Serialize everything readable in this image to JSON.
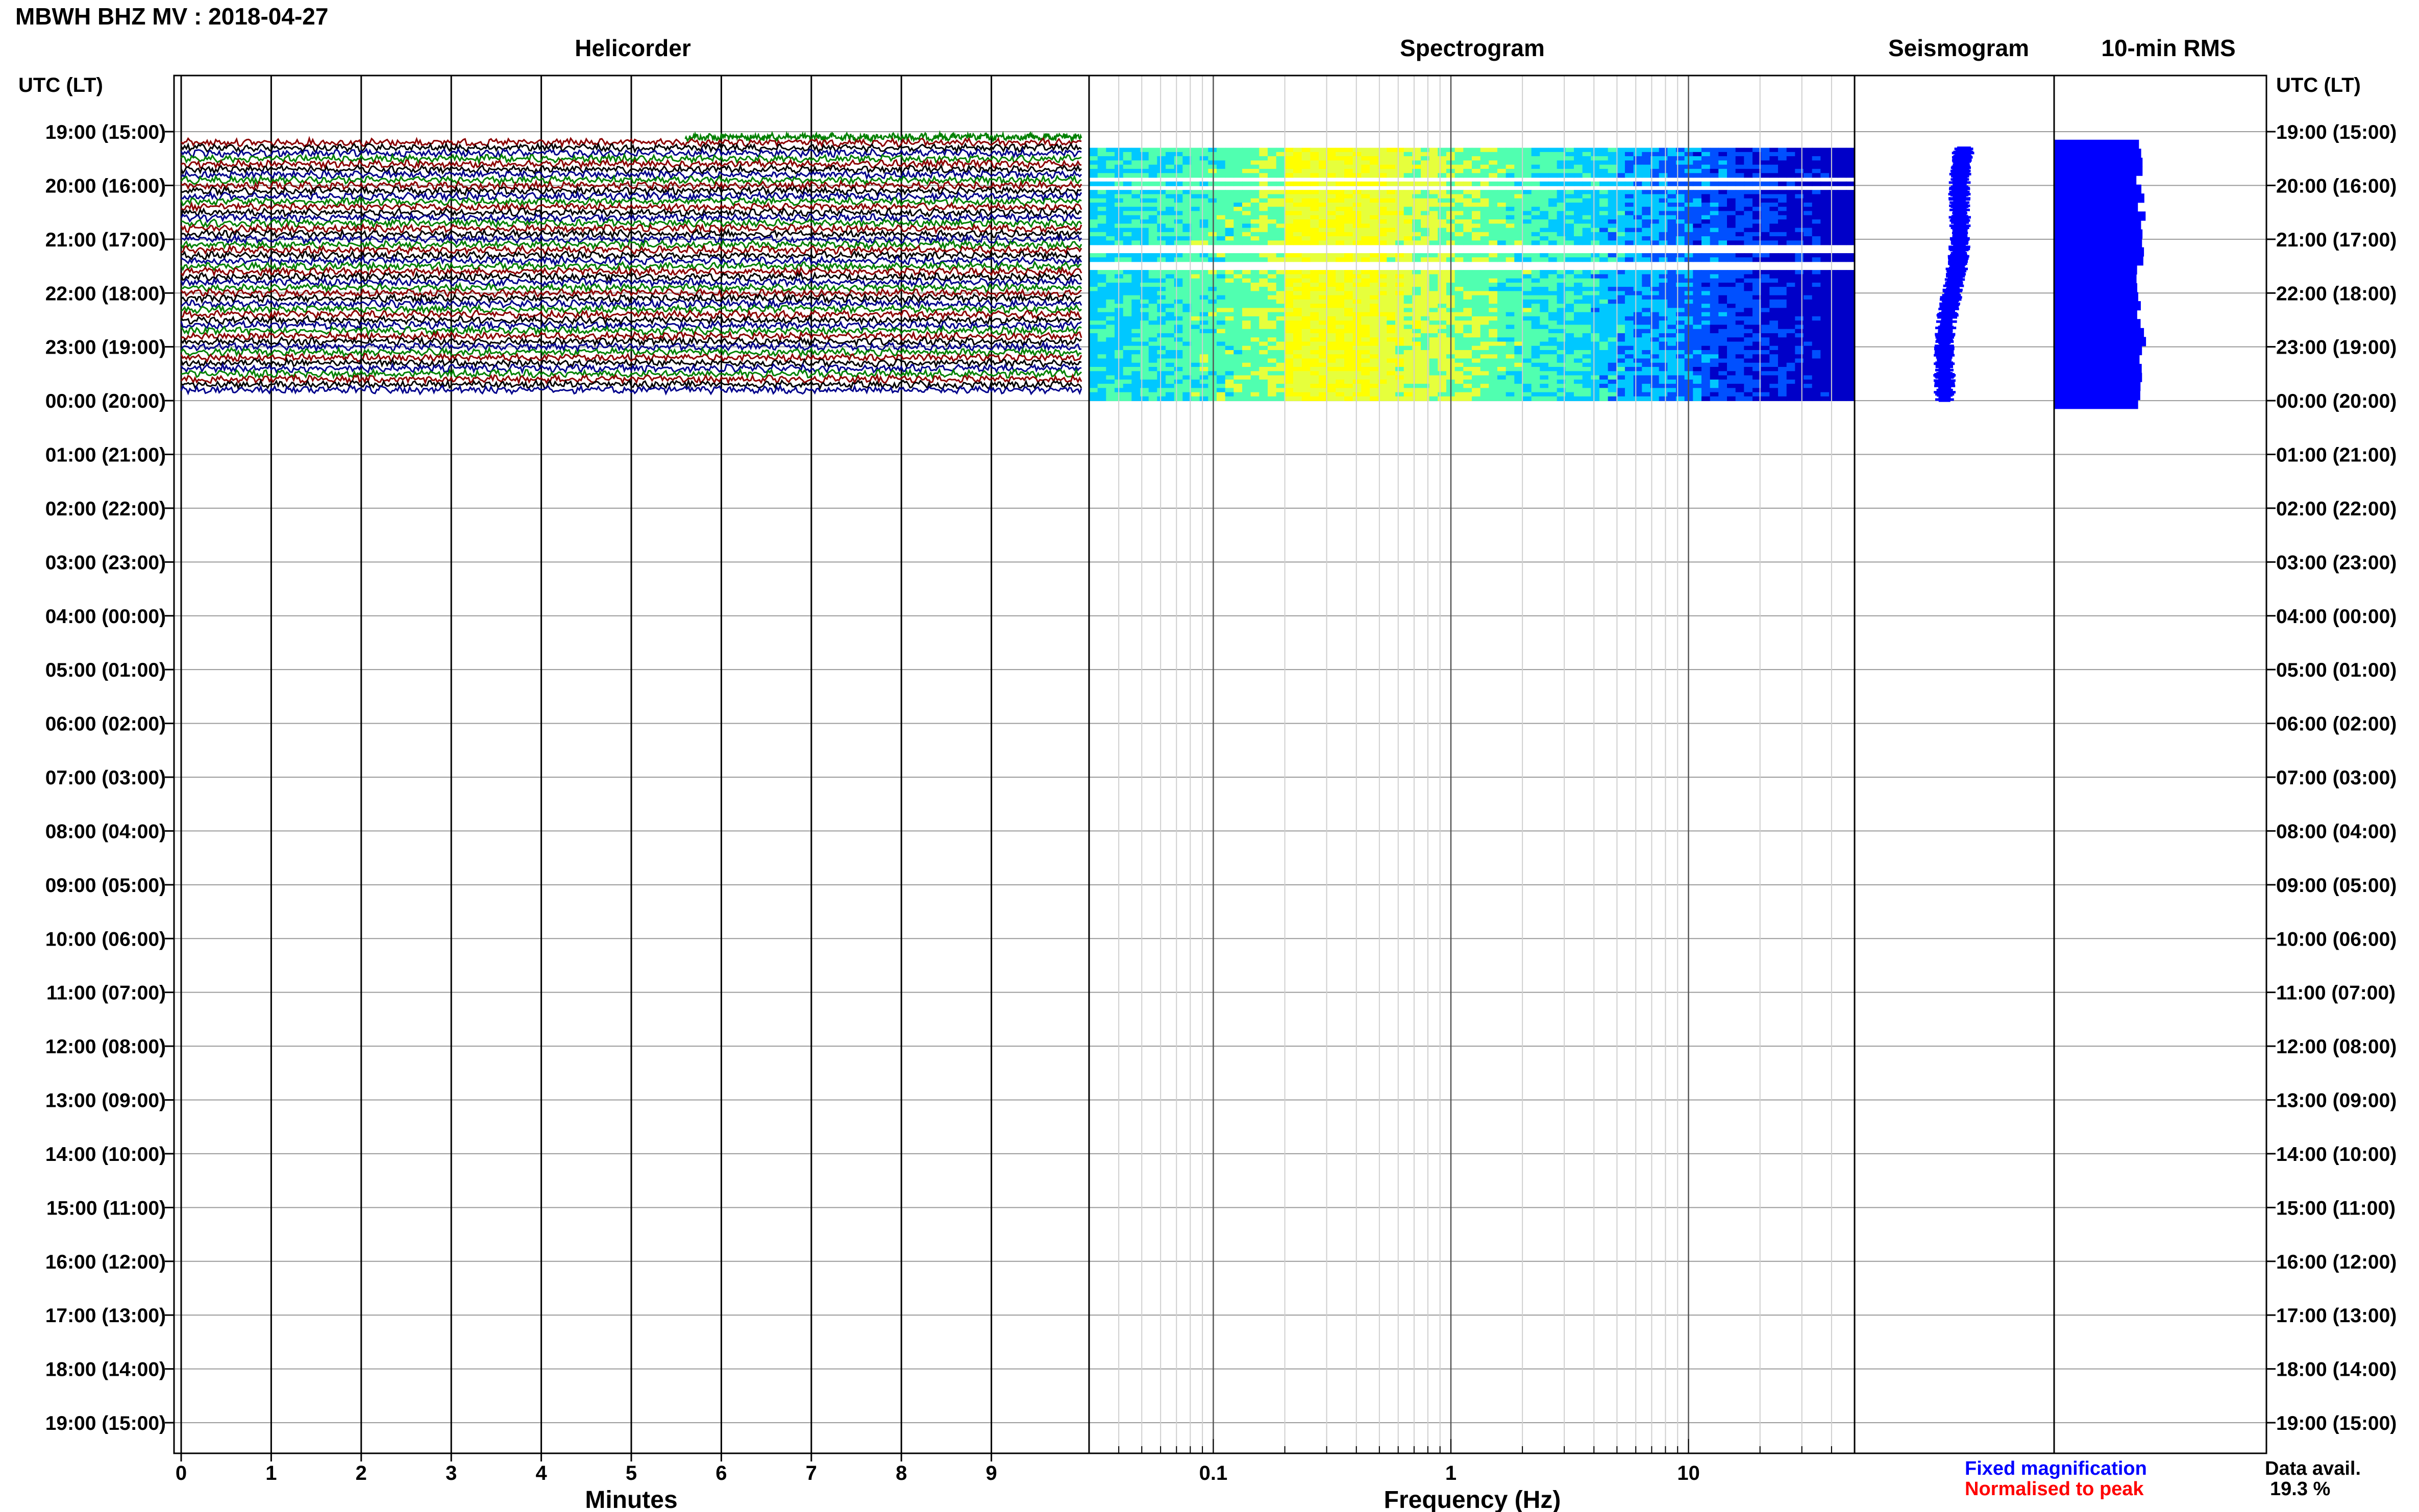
{
  "figure": {
    "title": "MBWH BHZ MV : 2018-04-27",
    "panel_titles": {
      "helicorder": "Helicorder",
      "spectrogram": "Spectrogram",
      "seismogram": "Seismogram",
      "rms": "10-min RMS"
    },
    "time_axis_label": "UTC (LT)",
    "time_labels": [
      "19:00 (15:00)",
      "20:00 (16:00)",
      "21:00 (17:00)",
      "22:00 (18:00)",
      "23:00 (19:00)",
      "00:00 (20:00)",
      "01:00 (21:00)",
      "02:00 (22:00)",
      "03:00 (23:00)",
      "04:00 (00:00)",
      "05:00 (01:00)",
      "06:00 (02:00)",
      "07:00 (03:00)",
      "08:00 (04:00)",
      "09:00 (05:00)",
      "10:00 (06:00)",
      "11:00 (07:00)",
      "12:00 (08:00)",
      "13:00 (09:00)",
      "14:00 (10:00)",
      "15:00 (11:00)",
      "16:00 (12:00)",
      "17:00 (13:00)",
      "18:00 (14:00)",
      "19:00 (15:00)"
    ],
    "legend": {
      "fixed": "Fixed magnification",
      "fixed_color": "#0000ff",
      "normalised": "Normalised to peak",
      "normalised_color": "#ff0000"
    },
    "data_avail_label": "Data avail.",
    "data_avail_value": "19.3 %"
  },
  "chart_data": [
    {
      "type": "line",
      "panel": "Helicorder",
      "xlabel": "Minutes",
      "x_ticks": [
        "0",
        "1",
        "2",
        "3",
        "4",
        "5",
        "6",
        "7",
        "8",
        "9"
      ],
      "xlim": [
        0,
        10
      ],
      "ylim_hours": [
        0,
        24
      ],
      "trace_colors": [
        "#00008b",
        "#008000",
        "#8b0000",
        "#000000"
      ],
      "trace_rows_with_data": [
        1,
        48
      ]
    },
    {
      "type": "heatmap",
      "panel": "Spectrogram",
      "xlabel": "Frequency (Hz)",
      "x_scale": "log",
      "x_ticks": [
        "0.1",
        "1",
        "10"
      ],
      "xlim": [
        0.03,
        50
      ],
      "data_hours": [
        0.3,
        5.0
      ],
      "gap_hours": [
        0.9,
        1.05,
        2.2,
        2.5
      ],
      "colormap": [
        "#0000c8",
        "#0050ff",
        "#00c8ff",
        "#50ffb0",
        "#e6ff3c",
        "#ffff00"
      ],
      "peak_band_hz": [
        0.2,
        0.45
      ]
    },
    {
      "type": "line",
      "panel": "Seismogram",
      "color": "#0000ff",
      "data_hours": [
        0.3,
        5.0
      ]
    },
    {
      "type": "bar",
      "panel": "10-min RMS",
      "color": "#0000ff",
      "data_hours": [
        0.15,
        5.0
      ]
    }
  ]
}
